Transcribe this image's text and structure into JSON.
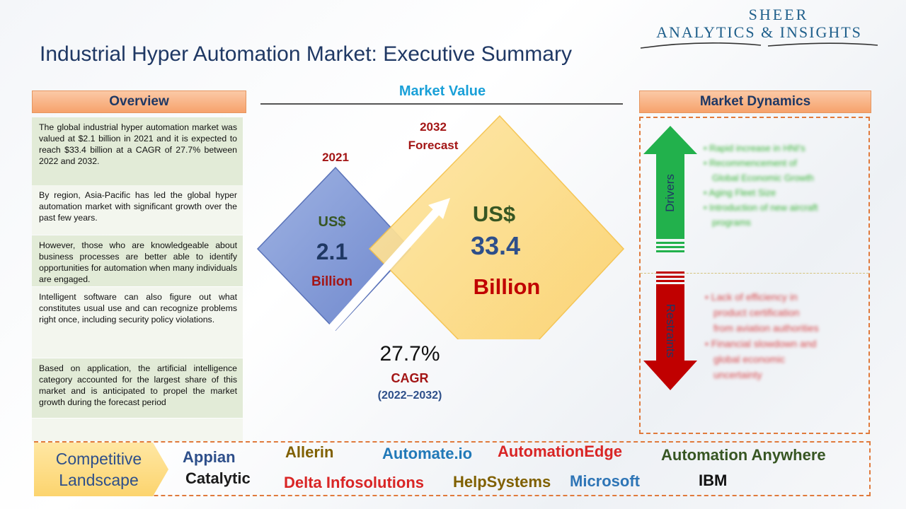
{
  "logo": {
    "line1": "SHEER",
    "line2": "ANALYTICS & INSIGHTS"
  },
  "title": "Industrial Hyper Automation Market: Executive Summary",
  "overview": {
    "header": "Overview",
    "paragraphs": [
      "The global industrial hyper automation market was valued at $2.1 billion in 2021 and it is expected to reach $33.4 billion at a CAGR of 27.7% between 2022 and 2032.",
      "By region, Asia-Pacific has led the global hyper automation market with significant growth over the past few years.",
      "However, those who are knowledgeable about business processes are better able to identify opportunities for automation when many individuals are engaged.",
      "Intelligent software can also figure out what constitutes usual use and can recognize problems right once, including security policy violations.",
      "Based on application, the artificial intelligence category accounted for the largest share of this market and is anticipated to propel the market growth during the forecast period"
    ]
  },
  "market_value": {
    "header": "Market Value",
    "y2021": {
      "year": "2021",
      "currency": "US$",
      "value": "2.1",
      "unit": "Billion"
    },
    "y2032": {
      "year": "2032",
      "forecast": "Forecast",
      "currency": "US$",
      "value": "33.4",
      "unit": "Billion"
    },
    "cagr": {
      "value": "27.7%",
      "label": "CAGR",
      "period": "(2022–2032)"
    }
  },
  "dynamics": {
    "header": "Market Dynamics",
    "drivers_label": "Drivers",
    "restraints_label": "Restraints",
    "drivers": [
      "Rapid increase in HNI's",
      "Recommencement of",
      "Global Economic Growth",
      "Aging Fleet Size",
      "Introduction of new aircraft",
      "programs"
    ],
    "restraints": [
      "Lack of efficiency in",
      "product certification",
      "from aviation authorities",
      "Financial slowdown and",
      "global economic",
      "uncertainty"
    ]
  },
  "competitive": {
    "label_line1": "Competitive",
    "label_line2": "Landscape",
    "companies": [
      {
        "name": "Appian",
        "color": "#2e4f8a"
      },
      {
        "name": "Allerin",
        "color": "#806000"
      },
      {
        "name": "Automate.io",
        "color": "#2179b8"
      },
      {
        "name": "AutomationEdge",
        "color": "#d92525"
      },
      {
        "name": "Automation Anywhere",
        "color": "#375623"
      },
      {
        "name": "Catalytic",
        "color": "#1c1c1c"
      },
      {
        "name": "Delta Infosolutions",
        "color": "#d92525"
      },
      {
        "name": "HelpSystems",
        "color": "#806000"
      },
      {
        "name": "Microsoft",
        "color": "#2e75b6"
      },
      {
        "name": "IBM",
        "color": "#111111"
      }
    ]
  },
  "colors": {
    "title": "#1f3864",
    "accent_blue": "#1aa0d8",
    "header_orange": "#f6a26c",
    "driver_green": "#22b14c",
    "restraint_red": "#c00000"
  }
}
